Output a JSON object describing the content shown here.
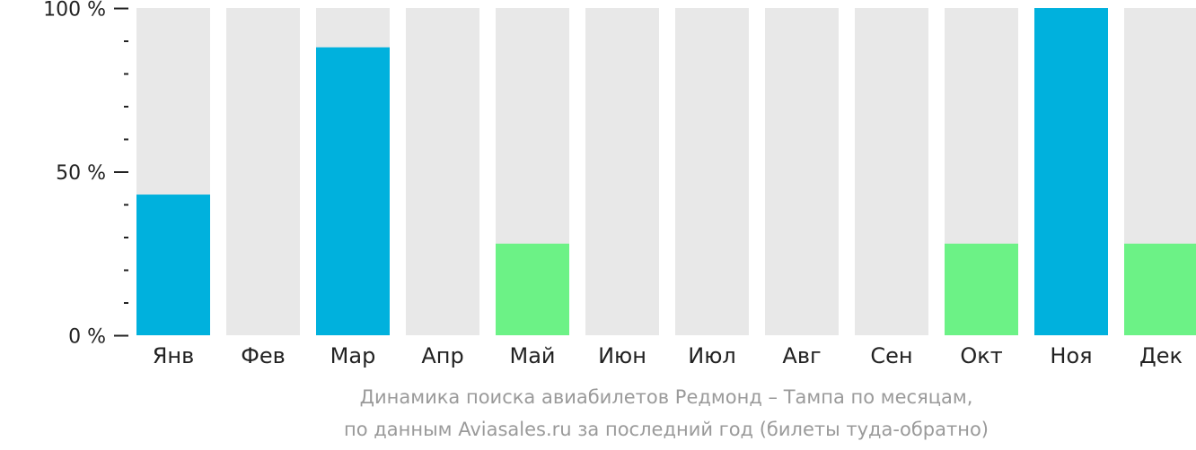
{
  "chart_data": {
    "type": "bar",
    "categories": [
      "Янв",
      "Фев",
      "Мар",
      "Апр",
      "Май",
      "Июн",
      "Июл",
      "Авг",
      "Сен",
      "Окт",
      "Ноя",
      "Дек"
    ],
    "values": [
      43,
      0,
      88,
      0,
      28,
      0,
      0,
      0,
      0,
      28,
      100,
      28
    ],
    "level": [
      "high",
      "none",
      "high",
      "none",
      "low",
      "none",
      "none",
      "none",
      "none",
      "low",
      "high",
      "low"
    ],
    "ylim": [
      0,
      100
    ],
    "yticks": [
      {
        "value": 0,
        "label": "0 %"
      },
      {
        "value": 50,
        "label": "50 %"
      },
      {
        "value": 100,
        "label": "100 %"
      }
    ],
    "minor_tick_step": 10,
    "grid": false,
    "caption": [
      "Динамика поиска авиабилетов Редмонд – Тампа по месяцам,",
      "по данным Aviasales.ru за последний год (билеты туда-обратно)"
    ]
  },
  "colors": {
    "background_bar": "#e8e8e8",
    "high": "#00b1dd",
    "low": "#6cf286",
    "axis": "#222222",
    "caption": "#9a9a9a"
  }
}
